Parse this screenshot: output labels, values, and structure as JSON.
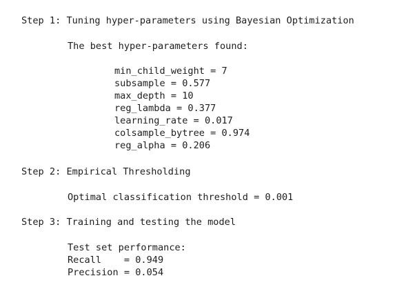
{
  "step1": {
    "title": "Step 1: Tuning hyper-parameters using Bayesian Optimization",
    "subtitle": "The best hyper-parameters found:",
    "params": [
      "min_child_weight = 7",
      "subsample = 0.577",
      "max_depth = 10",
      "reg_lambda = 0.377",
      "learning_rate = 0.017",
      "colsample_bytree = 0.974",
      "reg_alpha = 0.206"
    ]
  },
  "step2": {
    "title": "Step 2: Empirical Thresholding",
    "result": "Optimal classification threshold = 0.001"
  },
  "step3": {
    "title": "Step 3: Training and testing the model",
    "heading": "Test set performance:",
    "recall": "Recall    = 0.949",
    "precision": "Precision = 0.054"
  }
}
